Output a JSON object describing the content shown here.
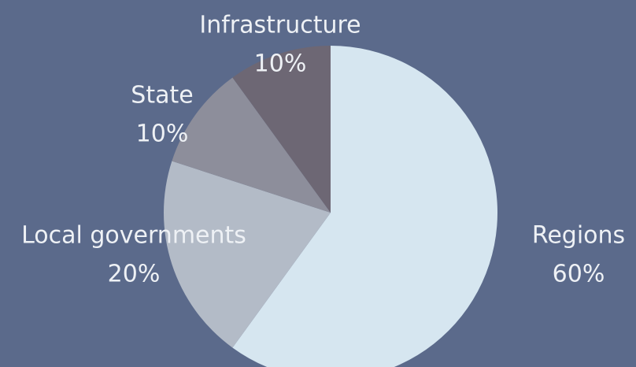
{
  "chart_data": {
    "type": "pie",
    "categories": [
      "Regions",
      "Local governments",
      "State",
      "Infrastructure"
    ],
    "values": [
      60,
      20,
      10,
      10
    ],
    "value_labels": [
      "60%",
      "20%",
      "10%",
      "10%"
    ],
    "colors": [
      "#d6e6f0",
      "#b3bbc7",
      "#8d8e9b",
      "#6d6774"
    ]
  }
}
